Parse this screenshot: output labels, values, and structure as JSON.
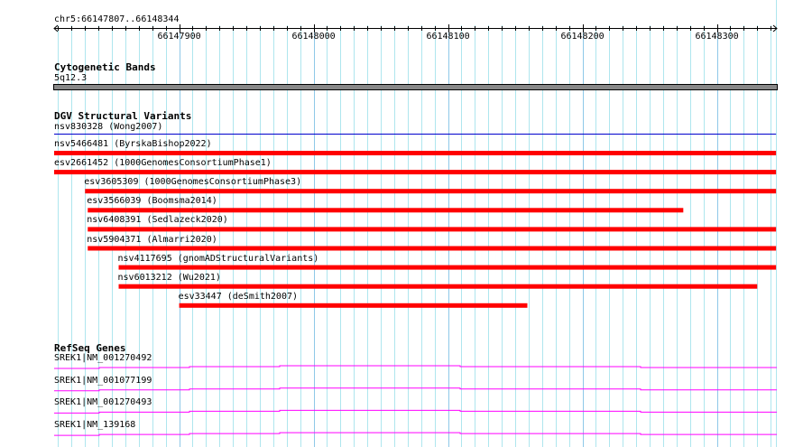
{
  "region": {
    "label": "chr5:66147807..66148344",
    "start": 66147807,
    "end": 66148344
  },
  "ruler": {
    "ticks": [
      "66147900",
      "66148000",
      "66148100",
      "66148200",
      "66148300"
    ]
  },
  "tracks": {
    "cytoband": {
      "title": "Cytogenetic Bands",
      "band": "5q12.3"
    },
    "dgv": {
      "title": "DGV Structural Variants",
      "features": [
        {
          "label": "nsv830328 (Wong2007)",
          "start": 66147807,
          "end": 66148344,
          "color": "#0000cc",
          "thin": true
        },
        {
          "label": "nsv5466481 (ByrskaBishop2022)",
          "start": 66147807,
          "end": 66148344,
          "color": "#ff0000"
        },
        {
          "label": "esv2661452 (1000GenomesConsortiumPhase1)",
          "start": 66147807,
          "end": 66148344,
          "color": "#ff0000"
        },
        {
          "label": "esv3605309 (1000GenomesConsortiumPhase3)",
          "start": 66147830,
          "end": 66148344,
          "color": "#ff0000"
        },
        {
          "label": "esv3566039 (Boomsma2014)",
          "start": 66147832,
          "end": 66148275,
          "color": "#ff0000"
        },
        {
          "label": "nsv6408391 (Sedlazeck2020)",
          "start": 66147832,
          "end": 66148344,
          "color": "#ff0000"
        },
        {
          "label": "nsv5904371 (Almarri2020)",
          "start": 66147832,
          "end": 66148344,
          "color": "#ff0000"
        },
        {
          "label": "nsv4117695 (gnomADStructuralVariants)",
          "start": 66147855,
          "end": 66148344,
          "color": "#ff0000"
        },
        {
          "label": "nsv6013212 (Wu2021)",
          "start": 66147855,
          "end": 66148330,
          "color": "#ff0000"
        },
        {
          "label": "esv33447 (deSmith2007)",
          "start": 66147900,
          "end": 66148159,
          "color": "#ff0000"
        }
      ]
    },
    "refseq": {
      "title": "RefSeq Genes",
      "genes": [
        "SREK1|NM_001270492",
        "SREK1|NM_001077199",
        "SREK1|NM_001270493",
        "SREK1|NM_139168"
      ],
      "color": "#ff00ff"
    }
  }
}
